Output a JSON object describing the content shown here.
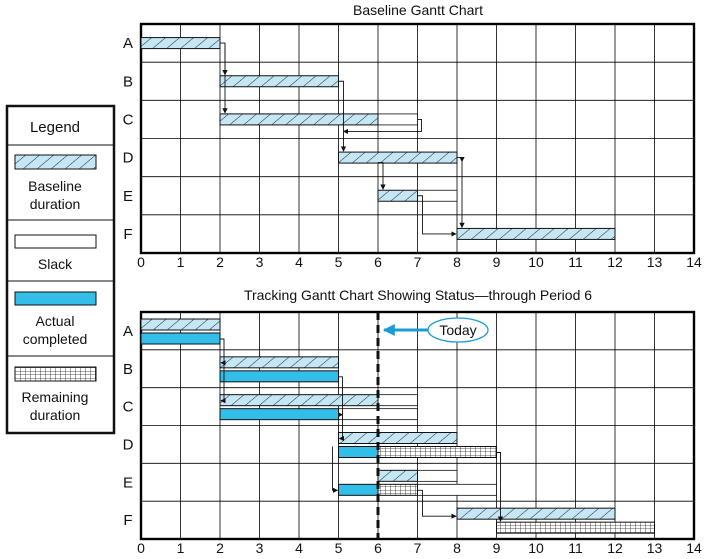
{
  "colors": {
    "baseline": "#c5e6f5",
    "actual": "#33bde9",
    "slack": "#ffffff",
    "grid": "#000000",
    "today": "#1b9bd6",
    "frame": "#000000"
  },
  "legend": {
    "title": "Legend",
    "items": [
      {
        "key": "baseline",
        "label_lines": [
          "Baseline",
          "duration"
        ]
      },
      {
        "key": "slack",
        "label_lines": [
          "Slack"
        ]
      },
      {
        "key": "actual",
        "label_lines": [
          "Actual",
          "completed"
        ]
      },
      {
        "key": "remaining",
        "label_lines": [
          "Remaining",
          "duration"
        ]
      }
    ]
  },
  "chart_data": [
    {
      "type": "gantt",
      "title": "Baseline Gantt Chart",
      "x_ticks": [
        0,
        1,
        2,
        3,
        4,
        5,
        6,
        7,
        8,
        9,
        10,
        11,
        12,
        13,
        14
      ],
      "xlim": [
        0,
        14
      ],
      "tasks": [
        "A",
        "B",
        "C",
        "D",
        "E",
        "F"
      ],
      "baseline": [
        {
          "task": "A",
          "start": 0,
          "end": 2
        },
        {
          "task": "B",
          "start": 2,
          "end": 5
        },
        {
          "task": "C",
          "start": 2,
          "end": 6,
          "slack_end": 7
        },
        {
          "task": "D",
          "start": 5,
          "end": 8
        },
        {
          "task": "E",
          "start": 6,
          "end": 7,
          "slack_end": 8
        },
        {
          "task": "F",
          "start": 8,
          "end": 12
        }
      ],
      "dependencies": [
        [
          "A",
          "B"
        ],
        [
          "A",
          "C"
        ],
        [
          "B",
          "D"
        ],
        [
          "C",
          "D"
        ],
        [
          "D",
          "E"
        ],
        [
          "D",
          "F"
        ],
        [
          "E",
          "F"
        ]
      ]
    },
    {
      "type": "gantt",
      "title": "Tracking Gantt Chart Showing Status—through Period 6",
      "x_ticks": [
        0,
        1,
        2,
        3,
        4,
        5,
        6,
        7,
        8,
        9,
        10,
        11,
        12,
        13,
        14
      ],
      "xlim": [
        0,
        14
      ],
      "tasks": [
        "A",
        "B",
        "C",
        "D",
        "E",
        "F"
      ],
      "today": 6,
      "today_label": "Today",
      "baseline": [
        {
          "task": "A",
          "start": 0,
          "end": 2
        },
        {
          "task": "B",
          "start": 2,
          "end": 5
        },
        {
          "task": "C",
          "start": 2,
          "end": 6,
          "slack_end": 7
        },
        {
          "task": "D",
          "start": 5,
          "end": 8
        },
        {
          "task": "E",
          "start": 6,
          "end": 7,
          "slack_end": 8
        },
        {
          "task": "F",
          "start": 8,
          "end": 12
        }
      ],
      "actual": [
        {
          "task": "A",
          "start": 0,
          "end": 2
        },
        {
          "task": "B",
          "start": 2,
          "end": 5
        },
        {
          "task": "C",
          "start": 2,
          "end": 5,
          "slack_end": 7
        },
        {
          "task": "D",
          "start": 5,
          "end": 6
        },
        {
          "task": "E",
          "start": 5,
          "end": 6
        }
      ],
      "remaining": [
        {
          "task": "D",
          "start": 6,
          "end": 9
        },
        {
          "task": "E",
          "start": 6,
          "end": 7,
          "slack_end": 9
        },
        {
          "task": "F",
          "start": 9,
          "end": 13
        }
      ]
    }
  ]
}
